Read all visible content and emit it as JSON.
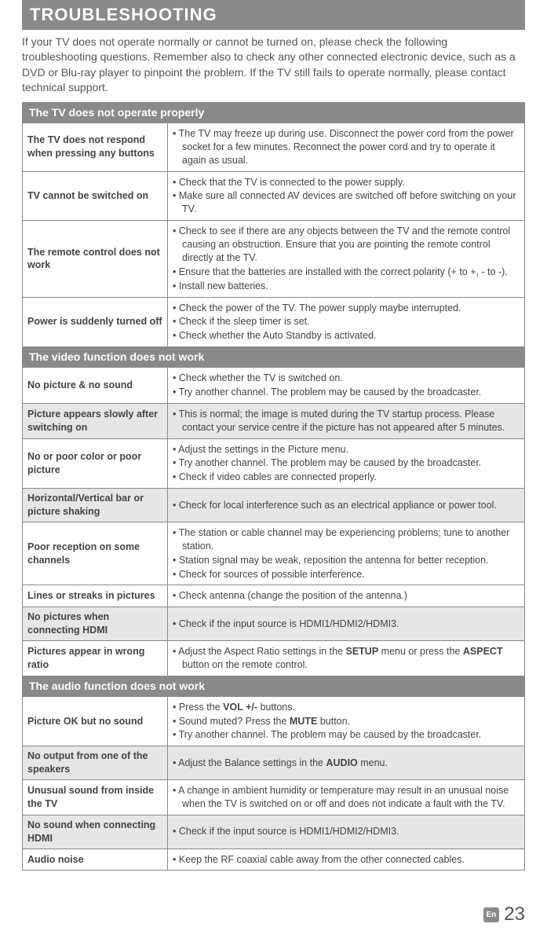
{
  "colors": {
    "header_bg": "#8a8a8a",
    "header_text": "#ffffff",
    "border": "#888888",
    "body_text": "#444444",
    "shaded_row": "#e6e6e6"
  },
  "title": "TROUBLESHOOTING",
  "intro": "If your TV does not operate normally or cannot be turned on, please check the following troubleshooting questions. Remember also to check any other connected electronic device, such as a DVD or Blu-ray player to pinpoint the problem. If the TV still fails to operate normally, please contact technical support.",
  "sections": [
    {
      "header": "The TV does not operate properly",
      "rows": [
        {
          "shaded": false,
          "label": "The TV does not respond when pressing any buttons",
          "items": [
            "The TV may freeze up during use. Disconnect the power cord from the power socket for a few minutes. Reconnect the power cord and try to operate it again as usual."
          ]
        },
        {
          "shaded": false,
          "label": "TV cannot be switched on",
          "items": [
            "Check that the TV is connected to the power supply.",
            "Make sure all connected AV devices are switched off before switching on your TV."
          ]
        },
        {
          "shaded": false,
          "label": "The remote control does not work",
          "items": [
            "Check to see if there are any objects between the TV and the remote control causing an obstruction. Ensure that you are pointing the remote control directly at the TV.",
            "Ensure that the batteries are installed with the correct polarity (+ to +, - to -).",
            "Install new batteries."
          ]
        },
        {
          "shaded": false,
          "label": "Power is suddenly turned off",
          "items": [
            "Check the power of the TV. The power supply maybe interrupted.",
            "Check if the sleep timer is set.",
            "Check whether the Auto Standby is activated."
          ]
        }
      ]
    },
    {
      "header": "The video function does not work",
      "rows": [
        {
          "shaded": false,
          "label": "No picture & no sound",
          "items": [
            "Check whether the TV is switched on.",
            "Try another channel. The problem may be caused by the broadcaster."
          ]
        },
        {
          "shaded": true,
          "label": "Picture appears slowly after switching on",
          "items": [
            "This is normal; the image is muted during the TV startup process. Please contact your service centre if the picture has not appeared after 5 minutes."
          ]
        },
        {
          "shaded": false,
          "label": "No or poor color or poor picture",
          "items": [
            "Adjust the settings in the Picture menu.",
            "Try another channel. The problem may be caused by the broadcaster.",
            "Check if video cables are connected properly."
          ]
        },
        {
          "shaded": true,
          "label": "Horizontal/Vertical bar or picture shaking",
          "items": [
            "Check for local interference such as an electrical appliance or power tool."
          ]
        },
        {
          "shaded": false,
          "label": "Poor reception on some channels",
          "items": [
            "The station or cable channel may be experiencing problems; tune to another station.",
            "Station signal may be weak, reposition the antenna for better reception.",
            "Check for sources of possible interference."
          ]
        },
        {
          "shaded": false,
          "label": "Lines or streaks in pictures",
          "items": [
            "Check antenna (change the position of the antenna.)"
          ]
        },
        {
          "shaded": true,
          "label": "No pictures when connecting HDMI",
          "items": [
            "Check if the input source is HDMI1/HDMI2/HDMI3."
          ]
        },
        {
          "shaded": false,
          "label": "Pictures appear in wrong ratio",
          "html_items": [
            "Adjust the Aspect Ratio settings in the <b>SETUP</b> menu or press the <b>ASPECT</b> button on the remote control."
          ]
        }
      ]
    },
    {
      "header": "The audio function does not work",
      "rows": [
        {
          "shaded": false,
          "label": "Picture OK but no sound",
          "html_items": [
            "Press the <b>VOL +/-</b> buttons.",
            "Sound muted? Press the <b>MUTE</b> button.",
            "Try another channel. The problem may be caused by the broadcaster."
          ]
        },
        {
          "shaded": true,
          "label": "No output from one of the speakers",
          "html_items": [
            "Adjust the Balance settings in the <b>AUDIO</b> menu."
          ]
        },
        {
          "shaded": false,
          "label": "Unusual sound from inside the TV",
          "items": [
            "A change in ambient humidity or temperature may result in an unusual noise when the TV is switched on or off and does not indicate a fault with the TV."
          ]
        },
        {
          "shaded": true,
          "label": "No sound when connecting HDMI",
          "items": [
            "Check if the input source is HDMI1/HDMI2/HDMI3."
          ]
        },
        {
          "shaded": false,
          "label": "Audio noise",
          "items": [
            "Keep the RF coaxial cable away from the other connected cables."
          ]
        }
      ]
    }
  ],
  "footer": {
    "lang_badge": "En",
    "page_number": "23"
  }
}
